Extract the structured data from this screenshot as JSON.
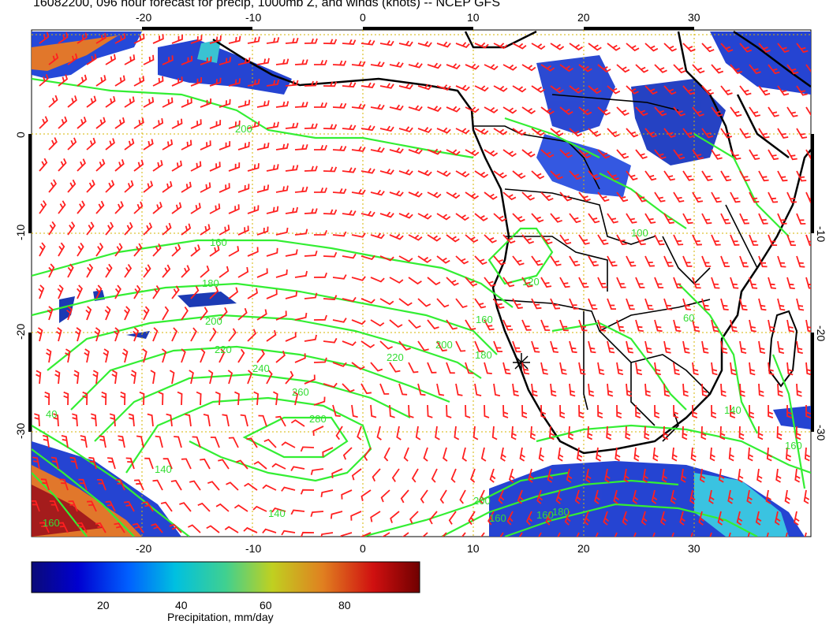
{
  "title": "16082200, 096 hour forecast for precip, 1000mb Z, and winds (knots) -- NCEP GFS",
  "map": {
    "lon_range": [
      -30,
      40
    ],
    "lat_range": [
      -40,
      10
    ],
    "lon_ticks_bottom": [
      "-20",
      "-10",
      "0",
      "10",
      "20",
      "30"
    ],
    "lon_ticks_top": [
      "-20",
      "-10",
      "0",
      "10",
      "20",
      "30"
    ],
    "lat_ticks_left": [
      "0",
      "-10",
      "-20",
      "-30"
    ],
    "lat_ticks_right": [
      "-10",
      "-20",
      "-30"
    ],
    "contour_labels": [
      "200",
      "160",
      "180",
      "200",
      "220",
      "240",
      "260",
      "280",
      "220",
      "200",
      "180",
      "160",
      "100",
      "120",
      "60",
      "140",
      "160",
      "180",
      "200",
      "160",
      "160",
      "160",
      "140",
      "40",
      "140"
    ],
    "colors": {
      "contour": "#33ee33",
      "barb": "#ff2020",
      "coast": "#000000",
      "grid": "#d4b400"
    }
  },
  "colorbar": {
    "tick_labels": [
      "20",
      "40",
      "60",
      "80"
    ],
    "range": [
      0,
      100
    ],
    "label": "Precipitation, mm/day",
    "colors": [
      "#0a0a78",
      "#0000d0",
      "#0060ff",
      "#00c0e0",
      "#40d090",
      "#c0d020",
      "#e08020",
      "#d01010",
      "#700000"
    ]
  }
}
